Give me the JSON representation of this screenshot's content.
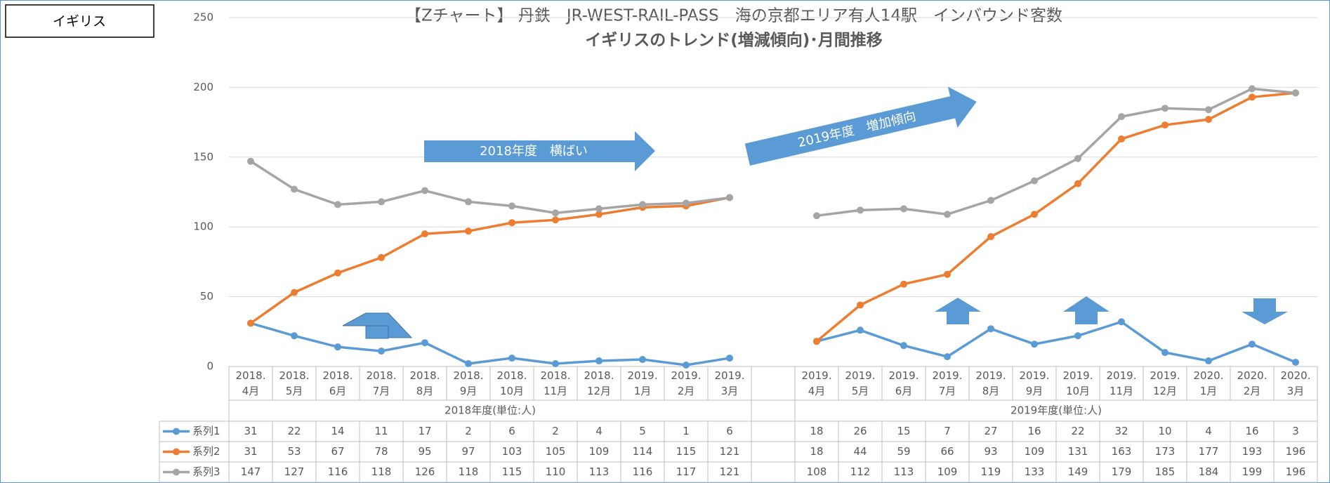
{
  "chart_data": {
    "type": "line",
    "title": "【Zチャート】 丹鉄　JR-WEST-RAIL-PASS　海の京都エリア有人14駅　インバウンド客数",
    "subtitle": "イギリスのトレンド(増減傾向)･月間推移",
    "panel_label": "イギリス",
    "annotations": [
      "2018年度　横ばい",
      "2019年度　増加傾向"
    ],
    "groups": [
      "2018年度(単位:人)",
      "2019年度(単位:人)"
    ],
    "categories": [
      "2018.4月",
      "2018.5月",
      "2018.6月",
      "2018.7月",
      "2018.8月",
      "2018.9月",
      "2018.10月",
      "2018.11月",
      "2018.12月",
      "2019.1月",
      "2019.2月",
      "2019.3月",
      null,
      "2019.4月",
      "2019.5月",
      "2019.6月",
      "2019.7月",
      "2019.8月",
      "2019.9月",
      "2019.10月",
      "2019.11月",
      "2019.12月",
      "2020.1月",
      "2020.2月",
      "2020.3月"
    ],
    "series": [
      {
        "name": "系列1",
        "color": "#5b9bd5",
        "values": [
          31,
          22,
          14,
          11,
          17,
          2,
          6,
          2,
          4,
          5,
          1,
          6,
          null,
          18,
          26,
          15,
          7,
          27,
          16,
          22,
          32,
          10,
          4,
          16,
          3
        ]
      },
      {
        "name": "系列2",
        "color": "#ed7d31",
        "values": [
          31,
          53,
          67,
          78,
          95,
          97,
          103,
          105,
          109,
          114,
          115,
          121,
          null,
          18,
          44,
          59,
          66,
          93,
          109,
          131,
          163,
          173,
          177,
          193,
          196
        ]
      },
      {
        "name": "系列3",
        "color": "#a5a5a5",
        "values": [
          147,
          127,
          116,
          118,
          126,
          118,
          115,
          110,
          113,
          116,
          117,
          121,
          null,
          108,
          112,
          113,
          109,
          119,
          133,
          149,
          179,
          185,
          184,
          199,
          196
        ]
      }
    ],
    "ylim": [
      0,
      250
    ],
    "yticks": [
      0,
      50,
      100,
      150,
      200,
      250
    ],
    "grid": true
  }
}
